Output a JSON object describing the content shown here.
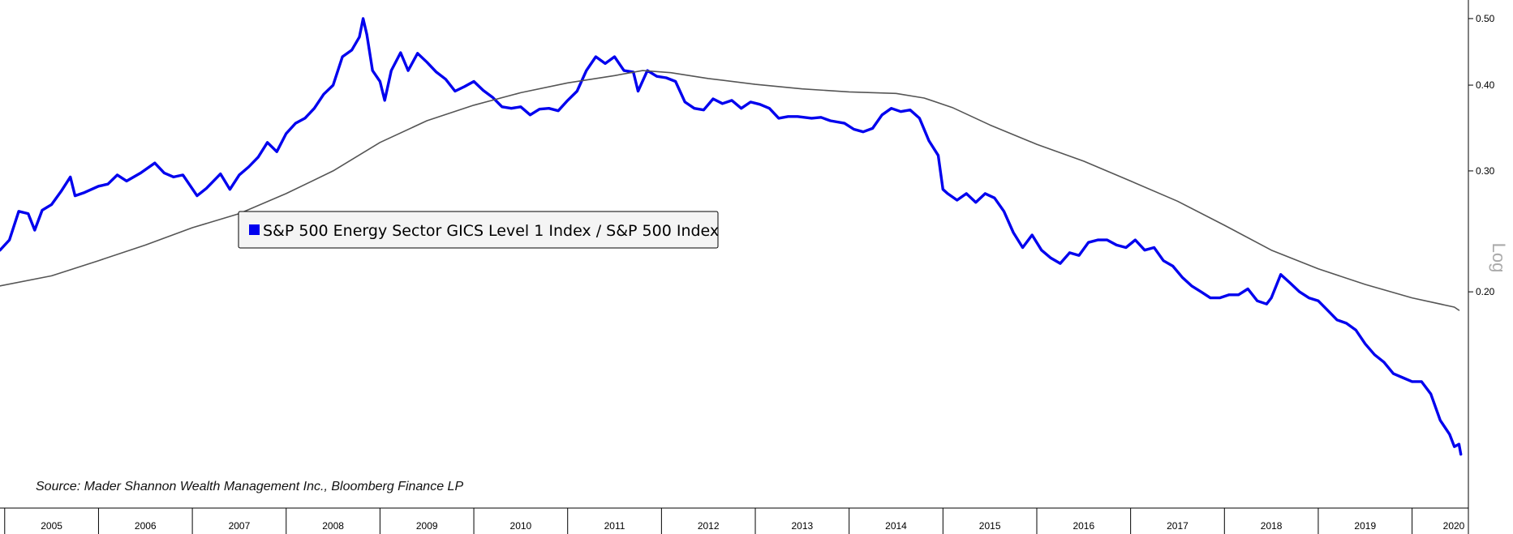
{
  "chart_data": {
    "type": "line",
    "title": "",
    "xlabel": "",
    "ylabel": "",
    "scale_label": "Log",
    "source": "Source: Mader Shannon Wealth Management Inc., Bloomberg Finance LP",
    "x_ticks": [
      "2005",
      "2006",
      "2007",
      "2008",
      "2009",
      "2010",
      "2011",
      "2012",
      "2013",
      "2014",
      "2015",
      "2016",
      "2017",
      "2018",
      "2019",
      "2020"
    ],
    "y_scale": "log",
    "y_ticks": [
      {
        "value": 0.5,
        "label": "0.50"
      },
      {
        "value": 0.4,
        "label": "0.40"
      },
      {
        "value": 0.3,
        "label": "0.30"
      },
      {
        "value": 0.2,
        "label": "0.20"
      }
    ],
    "xlim": [
      2004.45,
      2020.1
    ],
    "ylim": [
      0.114,
      0.504
    ],
    "legend": {
      "placement": "center-left",
      "entries": [
        "S&P 500 Energy Sector GICS Level 1 Index / S&P 500 Index"
      ]
    },
    "series": [
      {
        "name": "S&P 500 Energy Sector GICS Level 1 Index / S&P 500 Index",
        "color": "#0000ee",
        "points": [
          [
            2004.45,
            0.23
          ],
          [
            2004.55,
            0.238
          ],
          [
            2004.65,
            0.262
          ],
          [
            2004.75,
            0.26
          ],
          [
            2004.82,
            0.246
          ],
          [
            2004.9,
            0.263
          ],
          [
            2005.0,
            0.268
          ],
          [
            2005.1,
            0.28
          ],
          [
            2005.2,
            0.294
          ],
          [
            2005.25,
            0.276
          ],
          [
            2005.35,
            0.279
          ],
          [
            2005.5,
            0.285
          ],
          [
            2005.6,
            0.287
          ],
          [
            2005.7,
            0.296
          ],
          [
            2005.8,
            0.29
          ],
          [
            2005.95,
            0.298
          ],
          [
            2006.1,
            0.308
          ],
          [
            2006.2,
            0.298
          ],
          [
            2006.3,
            0.294
          ],
          [
            2006.4,
            0.296
          ],
          [
            2006.55,
            0.276
          ],
          [
            2006.65,
            0.283
          ],
          [
            2006.8,
            0.297
          ],
          [
            2006.9,
            0.282
          ],
          [
            2007.0,
            0.296
          ],
          [
            2007.1,
            0.304
          ],
          [
            2007.2,
            0.314
          ],
          [
            2007.3,
            0.33
          ],
          [
            2007.4,
            0.32
          ],
          [
            2007.5,
            0.34
          ],
          [
            2007.6,
            0.352
          ],
          [
            2007.7,
            0.358
          ],
          [
            2007.8,
            0.37
          ],
          [
            2007.9,
            0.388
          ],
          [
            2008.0,
            0.4
          ],
          [
            2008.1,
            0.44
          ],
          [
            2008.2,
            0.45
          ],
          [
            2008.28,
            0.47
          ],
          [
            2008.32,
            0.5
          ],
          [
            2008.36,
            0.474
          ],
          [
            2008.42,
            0.42
          ],
          [
            2008.5,
            0.405
          ],
          [
            2008.55,
            0.38
          ],
          [
            2008.62,
            0.42
          ],
          [
            2008.72,
            0.446
          ],
          [
            2008.8,
            0.42
          ],
          [
            2008.9,
            0.445
          ],
          [
            2009.0,
            0.432
          ],
          [
            2009.1,
            0.418
          ],
          [
            2009.2,
            0.408
          ],
          [
            2009.3,
            0.392
          ],
          [
            2009.4,
            0.398
          ],
          [
            2009.5,
            0.405
          ],
          [
            2009.6,
            0.393
          ],
          [
            2009.7,
            0.384
          ],
          [
            2009.8,
            0.372
          ],
          [
            2009.9,
            0.37
          ],
          [
            2010.0,
            0.372
          ],
          [
            2010.1,
            0.362
          ],
          [
            2010.2,
            0.369
          ],
          [
            2010.3,
            0.37
          ],
          [
            2010.4,
            0.367
          ],
          [
            2010.5,
            0.38
          ],
          [
            2010.6,
            0.392
          ],
          [
            2010.7,
            0.42
          ],
          [
            2010.8,
            0.44
          ],
          [
            2010.9,
            0.43
          ],
          [
            2011.0,
            0.44
          ],
          [
            2011.1,
            0.42
          ],
          [
            2011.2,
            0.418
          ],
          [
            2011.25,
            0.392
          ],
          [
            2011.35,
            0.42
          ],
          [
            2011.45,
            0.412
          ],
          [
            2011.55,
            0.41
          ],
          [
            2011.65,
            0.405
          ],
          [
            2011.75,
            0.378
          ],
          [
            2011.85,
            0.37
          ],
          [
            2011.95,
            0.368
          ],
          [
            2012.05,
            0.382
          ],
          [
            2012.15,
            0.376
          ],
          [
            2012.25,
            0.38
          ],
          [
            2012.35,
            0.37
          ],
          [
            2012.45,
            0.378
          ],
          [
            2012.55,
            0.375
          ],
          [
            2012.65,
            0.37
          ],
          [
            2012.75,
            0.358
          ],
          [
            2012.85,
            0.36
          ],
          [
            2012.95,
            0.36
          ],
          [
            2013.1,
            0.358
          ],
          [
            2013.2,
            0.359
          ],
          [
            2013.3,
            0.355
          ],
          [
            2013.45,
            0.352
          ],
          [
            2013.55,
            0.345
          ],
          [
            2013.65,
            0.342
          ],
          [
            2013.75,
            0.346
          ],
          [
            2013.85,
            0.362
          ],
          [
            2013.95,
            0.37
          ],
          [
            2014.05,
            0.366
          ],
          [
            2014.15,
            0.368
          ],
          [
            2014.25,
            0.358
          ],
          [
            2014.35,
            0.332
          ],
          [
            2014.45,
            0.316
          ],
          [
            2014.5,
            0.282
          ],
          [
            2014.55,
            0.278
          ],
          [
            2014.65,
            0.272
          ],
          [
            2014.75,
            0.278
          ],
          [
            2014.85,
            0.27
          ],
          [
            2014.95,
            0.278
          ],
          [
            2015.05,
            0.274
          ],
          [
            2015.15,
            0.262
          ],
          [
            2015.25,
            0.244
          ],
          [
            2015.35,
            0.232
          ],
          [
            2015.45,
            0.242
          ],
          [
            2015.55,
            0.23
          ],
          [
            2015.65,
            0.224
          ],
          [
            2015.75,
            0.22
          ],
          [
            2015.85,
            0.228
          ],
          [
            2015.95,
            0.226
          ],
          [
            2016.05,
            0.236
          ],
          [
            2016.15,
            0.238
          ],
          [
            2016.25,
            0.238
          ],
          [
            2016.35,
            0.234
          ],
          [
            2016.45,
            0.232
          ],
          [
            2016.55,
            0.238
          ],
          [
            2016.65,
            0.23
          ],
          [
            2016.75,
            0.232
          ],
          [
            2016.85,
            0.222
          ],
          [
            2016.95,
            0.218
          ],
          [
            2017.05,
            0.21
          ],
          [
            2017.15,
            0.204
          ],
          [
            2017.25,
            0.2
          ],
          [
            2017.35,
            0.196
          ],
          [
            2017.45,
            0.196
          ],
          [
            2017.55,
            0.198
          ],
          [
            2017.65,
            0.198
          ],
          [
            2017.75,
            0.202
          ],
          [
            2017.85,
            0.194
          ],
          [
            2017.95,
            0.192
          ],
          [
            2018.0,
            0.196
          ],
          [
            2018.1,
            0.212
          ],
          [
            2018.2,
            0.206
          ],
          [
            2018.3,
            0.2
          ],
          [
            2018.4,
            0.196
          ],
          [
            2018.5,
            0.194
          ],
          [
            2018.6,
            0.188
          ],
          [
            2018.7,
            0.182
          ],
          [
            2018.8,
            0.18
          ],
          [
            2018.9,
            0.176
          ],
          [
            2019.0,
            0.168
          ],
          [
            2019.1,
            0.162
          ],
          [
            2019.2,
            0.158
          ],
          [
            2019.3,
            0.152
          ],
          [
            2019.4,
            0.15
          ],
          [
            2019.5,
            0.148
          ],
          [
            2019.6,
            0.148
          ],
          [
            2019.7,
            0.142
          ],
          [
            2019.8,
            0.13
          ],
          [
            2019.9,
            0.124
          ],
          [
            2019.95,
            0.119
          ],
          [
            2020.0,
            0.12
          ],
          [
            2020.02,
            0.116
          ]
        ]
      },
      {
        "name": "",
        "color": "#555555",
        "points": [
          [
            2004.45,
            0.204
          ],
          [
            2005.0,
            0.211
          ],
          [
            2005.5,
            0.222
          ],
          [
            2006.0,
            0.234
          ],
          [
            2006.5,
            0.248
          ],
          [
            2007.0,
            0.26
          ],
          [
            2007.5,
            0.278
          ],
          [
            2008.0,
            0.3
          ],
          [
            2008.5,
            0.33
          ],
          [
            2009.0,
            0.355
          ],
          [
            2009.5,
            0.374
          ],
          [
            2010.0,
            0.39
          ],
          [
            2010.5,
            0.403
          ],
          [
            2011.0,
            0.413
          ],
          [
            2011.3,
            0.42
          ],
          [
            2011.6,
            0.417
          ],
          [
            2012.0,
            0.409
          ],
          [
            2012.5,
            0.401
          ],
          [
            2013.0,
            0.395
          ],
          [
            2013.5,
            0.391
          ],
          [
            2014.0,
            0.389
          ],
          [
            2014.3,
            0.383
          ],
          [
            2014.6,
            0.371
          ],
          [
            2015.0,
            0.35
          ],
          [
            2015.5,
            0.328
          ],
          [
            2016.0,
            0.31
          ],
          [
            2016.5,
            0.29
          ],
          [
            2017.0,
            0.271
          ],
          [
            2017.5,
            0.25
          ],
          [
            2018.0,
            0.23
          ],
          [
            2018.5,
            0.216
          ],
          [
            2019.0,
            0.205
          ],
          [
            2019.5,
            0.196
          ],
          [
            2019.95,
            0.19
          ],
          [
            2020.0,
            0.188
          ]
        ]
      }
    ]
  }
}
